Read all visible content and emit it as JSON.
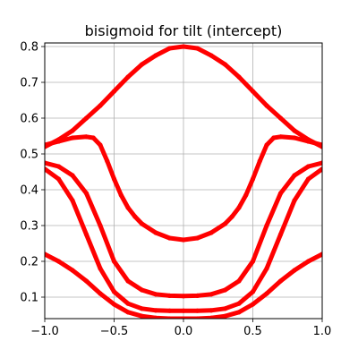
{
  "chart_data": {
    "type": "line",
    "title": "bisigmoid for tilt (intercept)",
    "xlabel": "",
    "ylabel": "",
    "xlim": [
      -1.0,
      1.0
    ],
    "ylim": [
      0.04,
      0.81
    ],
    "grid": true,
    "legend": "none",
    "x_ticks": [
      -1.0,
      -0.5,
      0.0,
      0.5,
      1.0
    ],
    "x_tick_labels": [
      "−1.0",
      "−0.5",
      "0.0",
      "0.5",
      "1.0"
    ],
    "y_ticks": [
      0.1,
      0.2,
      0.3,
      0.4,
      0.5,
      0.6,
      0.7,
      0.8
    ],
    "y_tick_labels": [
      "0.1",
      "0.2",
      "0.3",
      "0.4",
      "0.5",
      "0.6",
      "0.7",
      "0.8"
    ],
    "marker_color": "#ff0000",
    "series": [
      {
        "x": [
          -1.0,
          -0.9,
          -0.8,
          -0.7,
          -0.6,
          -0.5,
          -0.4,
          -0.3,
          -0.2,
          -0.1,
          0.0,
          0.1,
          0.2,
          0.3,
          0.4,
          0.5,
          0.6,
          0.7,
          0.8,
          0.9,
          1.0
        ],
        "y": [
          0.52,
          0.54,
          0.565,
          0.6,
          0.635,
          0.675,
          0.715,
          0.75,
          0.775,
          0.795,
          0.8,
          0.795,
          0.775,
          0.75,
          0.715,
          0.675,
          0.635,
          0.6,
          0.565,
          0.54,
          0.52
        ]
      },
      {
        "x": [
          -1.0,
          -0.9,
          -0.8,
          -0.7,
          -0.65,
          -0.6,
          -0.55,
          -0.5,
          -0.45,
          -0.4,
          -0.35,
          -0.3,
          -0.2,
          -0.1,
          0.0,
          0.1,
          0.2,
          0.3,
          0.35,
          0.4,
          0.45,
          0.5,
          0.55,
          0.6,
          0.65,
          0.7,
          0.8,
          0.9,
          1.0
        ],
        "y": [
          0.525,
          0.535,
          0.545,
          0.548,
          0.545,
          0.525,
          0.48,
          0.43,
          0.385,
          0.35,
          0.325,
          0.305,
          0.28,
          0.265,
          0.26,
          0.265,
          0.28,
          0.305,
          0.325,
          0.35,
          0.385,
          0.43,
          0.48,
          0.525,
          0.545,
          0.548,
          0.545,
          0.535,
          0.525
        ]
      },
      {
        "x": [
          -1.0,
          -0.9,
          -0.8,
          -0.7,
          -0.6,
          -0.5,
          -0.4,
          -0.3,
          -0.2,
          -0.1,
          0.0,
          0.1,
          0.2,
          0.3,
          0.4,
          0.5,
          0.6,
          0.7,
          0.8,
          0.9,
          1.0
        ],
        "y": [
          0.475,
          0.465,
          0.44,
          0.39,
          0.3,
          0.2,
          0.145,
          0.12,
          0.108,
          0.104,
          0.103,
          0.104,
          0.108,
          0.12,
          0.145,
          0.2,
          0.3,
          0.39,
          0.44,
          0.465,
          0.475
        ]
      },
      {
        "x": [
          -1.0,
          -0.9,
          -0.8,
          -0.7,
          -0.6,
          -0.5,
          -0.4,
          -0.3,
          -0.2,
          -0.1,
          0.0,
          0.1,
          0.2,
          0.3,
          0.4,
          0.5,
          0.6,
          0.7,
          0.8,
          0.9,
          1.0
        ],
        "y": [
          0.458,
          0.43,
          0.37,
          0.275,
          0.18,
          0.115,
          0.082,
          0.068,
          0.063,
          0.062,
          0.062,
          0.062,
          0.063,
          0.068,
          0.082,
          0.115,
          0.18,
          0.275,
          0.37,
          0.43,
          0.458
        ]
      },
      {
        "x": [
          -1.0,
          -0.9,
          -0.8,
          -0.7,
          -0.6,
          -0.5,
          -0.4,
          -0.3,
          -0.2,
          -0.1,
          0.0,
          0.1,
          0.2,
          0.3,
          0.4,
          0.5,
          0.6,
          0.7,
          0.8,
          0.9,
          1.0
        ],
        "y": [
          0.22,
          0.2,
          0.175,
          0.145,
          0.11,
          0.08,
          0.058,
          0.047,
          0.042,
          0.04,
          0.04,
          0.04,
          0.042,
          0.047,
          0.058,
          0.08,
          0.11,
          0.145,
          0.175,
          0.2,
          0.22
        ]
      }
    ]
  }
}
